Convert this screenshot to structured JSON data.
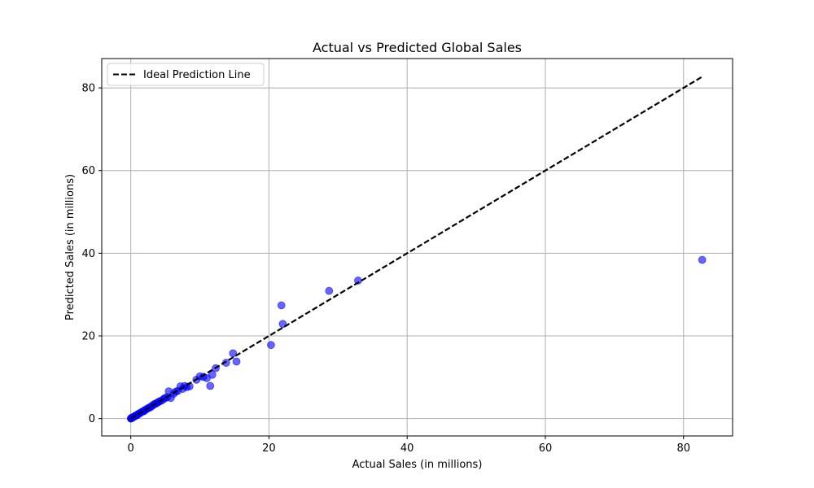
{
  "chart_data": {
    "type": "scatter",
    "title": "Actual vs Predicted Global Sales",
    "xlabel": "Actual Sales (in millions)",
    "ylabel": "Predicted Sales (in millions)",
    "xlim": [
      -4.2,
      87.1
    ],
    "ylim": [
      -4.2,
      87.1
    ],
    "xticks": [
      0,
      20,
      40,
      60,
      80
    ],
    "yticks": [
      0,
      20,
      40,
      60,
      80
    ],
    "grid": true,
    "legend_position": "top-left",
    "colors": {
      "points": "#0000ff",
      "ideal_line": "#000000",
      "grid": "#b0b0b0"
    },
    "series": [
      {
        "kind": "points",
        "x": [
          0.02,
          0.05,
          0.08,
          0.1,
          0.15,
          0.2,
          0.3,
          0.4,
          0.5,
          0.6,
          0.7,
          0.8,
          0.9,
          1.0,
          1.1,
          1.2,
          1.3,
          1.5,
          1.7,
          1.9,
          2.0,
          2.2,
          2.4,
          2.6,
          2.8,
          3.0,
          3.2,
          3.4,
          3.6,
          3.8,
          4.0,
          4.2,
          4.5,
          4.8,
          5.0,
          5.3,
          5.5,
          5.8,
          6.2,
          6.5,
          6.8,
          7.2,
          7.5,
          7.8,
          8.1,
          8.5,
          9.5,
          10.0,
          10.5,
          11.0,
          11.5,
          11.8,
          12.3,
          13.8,
          14.8,
          15.3,
          20.3,
          21.8,
          22.0,
          28.7,
          32.9,
          82.7
        ],
        "y": [
          0.0,
          0.05,
          0.1,
          0.1,
          0.2,
          0.2,
          0.3,
          0.4,
          0.5,
          0.6,
          0.7,
          0.8,
          0.8,
          1.0,
          1.1,
          1.2,
          1.3,
          1.5,
          1.7,
          1.8,
          2.0,
          2.2,
          2.4,
          2.6,
          2.7,
          3.0,
          3.2,
          3.5,
          3.6,
          3.8,
          4.0,
          4.2,
          4.4,
          4.8,
          5.0,
          5.2,
          6.6,
          5.0,
          6.0,
          6.5,
          6.7,
          7.8,
          7.2,
          7.9,
          7.6,
          7.8,
          9.4,
          10.2,
          10.1,
          9.8,
          7.9,
          10.6,
          12.2,
          13.5,
          15.8,
          13.8,
          17.8,
          27.4,
          22.9,
          30.9,
          33.4,
          38.4
        ]
      },
      {
        "kind": "line",
        "name": "Ideal Prediction Line",
        "x": [
          0,
          82.7
        ],
        "y": [
          0,
          82.7
        ]
      }
    ]
  }
}
